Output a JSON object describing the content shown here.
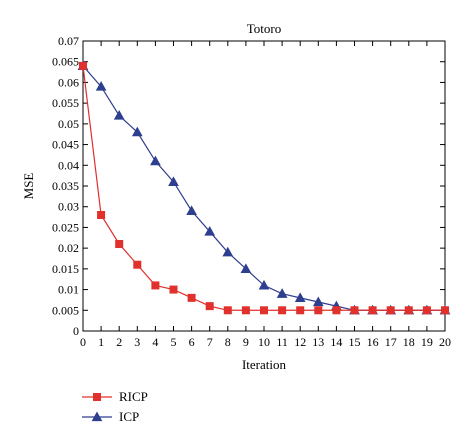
{
  "chart_data": {
    "type": "line",
    "title": "Totoro",
    "xlabel": "Iteration",
    "ylabel": "MSE",
    "xlim": [
      0,
      20
    ],
    "ylim": [
      0,
      0.07
    ],
    "x": [
      0,
      1,
      2,
      3,
      4,
      5,
      6,
      7,
      8,
      9,
      10,
      11,
      12,
      13,
      14,
      15,
      16,
      17,
      18,
      19,
      20
    ],
    "x_tick_labels": [
      "0",
      "1",
      "2",
      "3",
      "4",
      "5",
      "6",
      "7",
      "8",
      "9",
      "10",
      "11",
      "12",
      "13",
      "14",
      "15",
      "16",
      "17",
      "18",
      "19",
      "20"
    ],
    "y_ticks": [
      0,
      0.005,
      0.01,
      0.015,
      0.02,
      0.025,
      0.03,
      0.035,
      0.04,
      0.045,
      0.05,
      0.055,
      0.06,
      0.065,
      0.07
    ],
    "y_tick_labels": [
      "0",
      "0.005",
      "0.01",
      "0.015",
      "0.02",
      "0.025",
      "0.03",
      "0.035",
      "0.04",
      "0.045",
      "0.05",
      "0.055",
      "0.06",
      "0.065",
      "0.07"
    ],
    "grid": false,
    "legend_position": "bottom-left, outside plot",
    "series": [
      {
        "name": "RICP",
        "color": "#e0312c",
        "marker": "square",
        "values": [
          0.064,
          0.028,
          0.021,
          0.016,
          0.011,
          0.01,
          0.008,
          0.006,
          0.005,
          0.005,
          0.005,
          0.005,
          0.005,
          0.005,
          0.005,
          0.005,
          0.005,
          0.005,
          0.005,
          0.005,
          0.005
        ]
      },
      {
        "name": "ICP",
        "color": "#2f3f8f",
        "marker": "triangle",
        "values": [
          0.064,
          0.059,
          0.052,
          0.048,
          0.041,
          0.036,
          0.029,
          0.024,
          0.019,
          0.015,
          0.011,
          0.009,
          0.008,
          0.007,
          0.006,
          0.005,
          0.005,
          0.005,
          0.005,
          0.005,
          0.005
        ]
      }
    ]
  }
}
